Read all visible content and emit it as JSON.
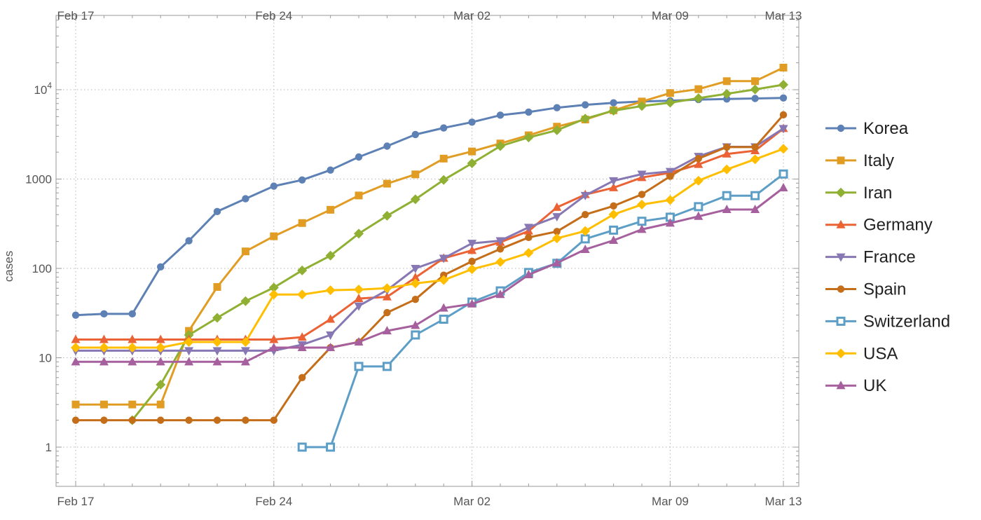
{
  "chart_data": {
    "type": "line",
    "ylabel": "cases",
    "yscale": "log",
    "ylim": [
      0.4,
      50000
    ],
    "x_dates": [
      "Feb 17",
      "Feb 18",
      "Feb 19",
      "Feb 20",
      "Feb 21",
      "Feb 22",
      "Feb 23",
      "Feb 24",
      "Feb 25",
      "Feb 26",
      "Feb 27",
      "Feb 28",
      "Feb 29",
      "Mar 01",
      "Mar 02",
      "Mar 03",
      "Mar 04",
      "Mar 05",
      "Mar 06",
      "Mar 07",
      "Mar 08",
      "Mar 09",
      "Mar 10",
      "Mar 11",
      "Mar 12",
      "Mar 13"
    ],
    "x_tick_labels": [
      "Feb 17",
      "Feb 24",
      "Mar 02",
      "Mar 09",
      "Mar 13"
    ],
    "y_tick_labels": [
      "1",
      "10",
      "100",
      "1000",
      "10^4"
    ],
    "grid": true,
    "legend_position": "right",
    "series": [
      {
        "name": "Korea",
        "color": "#5e81b5",
        "marker": "circle",
        "values": [
          30,
          31,
          31,
          104,
          204,
          433,
          602,
          833,
          977,
          1261,
          1766,
          2337,
          3150,
          3736,
          4335,
          5186,
          5621,
          6284,
          6767,
          7134,
          7382,
          7513,
          7755,
          7869,
          7979,
          8086
        ]
      },
      {
        "name": "Italy",
        "color": "#e19c24",
        "marker": "square",
        "values": [
          3,
          3,
          3,
          3,
          20,
          62,
          155,
          229,
          322,
          453,
          655,
          888,
          1128,
          1694,
          2036,
          2502,
          3089,
          3858,
          4636,
          5883,
          7375,
          9172,
          10149,
          12462,
          12462,
          17660
        ]
      },
      {
        "name": "Iran",
        "color": "#8fb032",
        "marker": "diamond",
        "values": [
          null,
          null,
          2,
          5,
          18,
          28,
          43,
          61,
          95,
          139,
          245,
          388,
          593,
          978,
          1501,
          2336,
          2922,
          3513,
          4747,
          5823,
          6566,
          7161,
          8042,
          9000,
          10075,
          11364
        ]
      },
      {
        "name": "Germany",
        "color": "#eb6235",
        "marker": "triangle-up",
        "values": [
          16,
          16,
          16,
          16,
          16,
          16,
          16,
          16,
          17,
          27,
          46,
          48,
          79,
          130,
          159,
          196,
          262,
          482,
          670,
          799,
          1040,
          1176,
          1457,
          1908,
          2078,
          3675
        ]
      },
      {
        "name": "France",
        "color": "#8778b3",
        "marker": "triangle-down",
        "values": [
          12,
          12,
          12,
          12,
          12,
          12,
          12,
          12,
          14,
          18,
          38,
          57,
          100,
          130,
          191,
          204,
          288,
          380,
          656,
          957,
          1134,
          1217,
          1794,
          2293,
          2293,
          3681
        ]
      },
      {
        "name": "Spain",
        "color": "#c56e1a",
        "marker": "circle",
        "values": [
          2,
          2,
          2,
          2,
          2,
          2,
          2,
          2,
          6,
          13,
          15,
          32,
          45,
          84,
          120,
          165,
          222,
          259,
          400,
          500,
          673,
          1073,
          1695,
          2277,
          2277,
          5232
        ]
      },
      {
        "name": "Switzerland",
        "color": "#5d9ec7",
        "marker": "square-open",
        "values": [
          null,
          null,
          null,
          null,
          null,
          null,
          null,
          null,
          1,
          1,
          8,
          8,
          18,
          27,
          42,
          56,
          90,
          114,
          214,
          268,
          337,
          374,
          491,
          652,
          652,
          1139
        ]
      },
      {
        "name": "USA",
        "color": "#ffbf00",
        "marker": "diamond",
        "values": [
          13,
          13,
          13,
          13,
          15,
          15,
          15,
          51,
          51,
          57,
          58,
          60,
          68,
          74,
          98,
          118,
          149,
          217,
          262,
          402,
          518,
          583,
          959,
          1281,
          1663,
          2179
        ]
      },
      {
        "name": "UK",
        "color": "#a5609d",
        "marker": "triangle-up",
        "values": [
          9,
          9,
          9,
          9,
          9,
          9,
          9,
          13,
          13,
          13,
          15,
          20,
          23,
          36,
          40,
          51,
          85,
          115,
          163,
          206,
          273,
          321,
          382,
          456,
          456,
          798
        ]
      }
    ]
  }
}
